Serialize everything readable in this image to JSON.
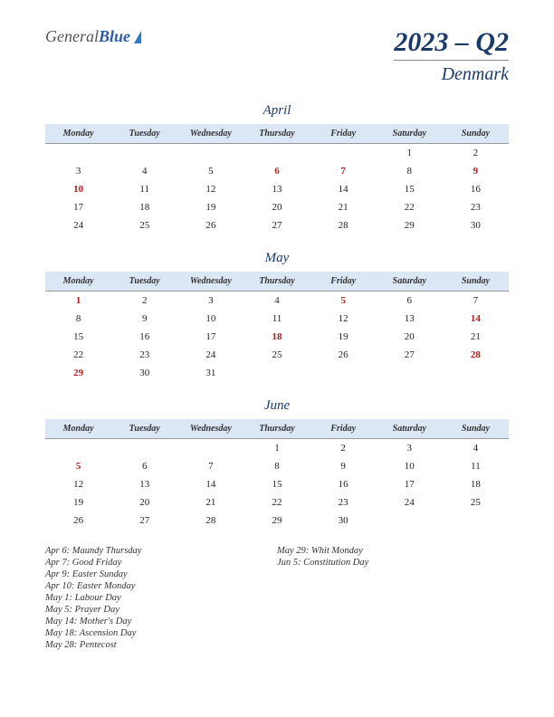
{
  "logo": {
    "part1": "General",
    "part2": "Blue"
  },
  "title": "2023 – Q2",
  "subtitle": "Denmark",
  "colors": {
    "header_bg": "#dbe7f5",
    "title_color": "#1a3a6a",
    "holiday_color": "#b02020",
    "text_color": "#222222"
  },
  "day_headers": [
    "Monday",
    "Tuesday",
    "Wednesday",
    "Thursday",
    "Friday",
    "Saturday",
    "Sunday"
  ],
  "months": [
    {
      "name": "April",
      "weeks": [
        [
          "",
          "",
          "",
          "",
          "",
          "1",
          "2"
        ],
        [
          "3",
          "4",
          "5",
          "6",
          "7",
          "8",
          "9"
        ],
        [
          "10",
          "11",
          "12",
          "13",
          "14",
          "15",
          "16"
        ],
        [
          "17",
          "18",
          "19",
          "20",
          "21",
          "22",
          "23"
        ],
        [
          "24",
          "25",
          "26",
          "27",
          "28",
          "29",
          "30"
        ]
      ],
      "holidays": [
        6,
        7,
        9,
        10
      ]
    },
    {
      "name": "May",
      "weeks": [
        [
          "1",
          "2",
          "3",
          "4",
          "5",
          "6",
          "7"
        ],
        [
          "8",
          "9",
          "10",
          "11",
          "12",
          "13",
          "14"
        ],
        [
          "15",
          "16",
          "17",
          "18",
          "19",
          "20",
          "21"
        ],
        [
          "22",
          "23",
          "24",
          "25",
          "26",
          "27",
          "28"
        ],
        [
          "29",
          "30",
          "31",
          "",
          "",
          "",
          ""
        ]
      ],
      "holidays": [
        1,
        5,
        14,
        18,
        28,
        29
      ]
    },
    {
      "name": "June",
      "weeks": [
        [
          "",
          "",
          "",
          "1",
          "2",
          "3",
          "4"
        ],
        [
          "5",
          "6",
          "7",
          "8",
          "9",
          "10",
          "11"
        ],
        [
          "12",
          "13",
          "14",
          "15",
          "16",
          "17",
          "18"
        ],
        [
          "19",
          "20",
          "21",
          "22",
          "23",
          "24",
          "25"
        ],
        [
          "26",
          "27",
          "28",
          "29",
          "30",
          "",
          ""
        ]
      ],
      "holidays": [
        5
      ]
    }
  ],
  "holiday_list": {
    "col1": [
      "Apr 6: Maundy Thursday",
      "Apr 7: Good Friday",
      "Apr 9: Easter Sunday",
      "Apr 10: Easter Monday",
      "May 1: Labour Day",
      "May 5: Prayer Day",
      "May 14: Mother's Day",
      "May 18: Ascension Day",
      "May 28: Pentecost"
    ],
    "col2": [
      "May 29: Whit Monday",
      "Jun 5: Constitution Day"
    ]
  }
}
